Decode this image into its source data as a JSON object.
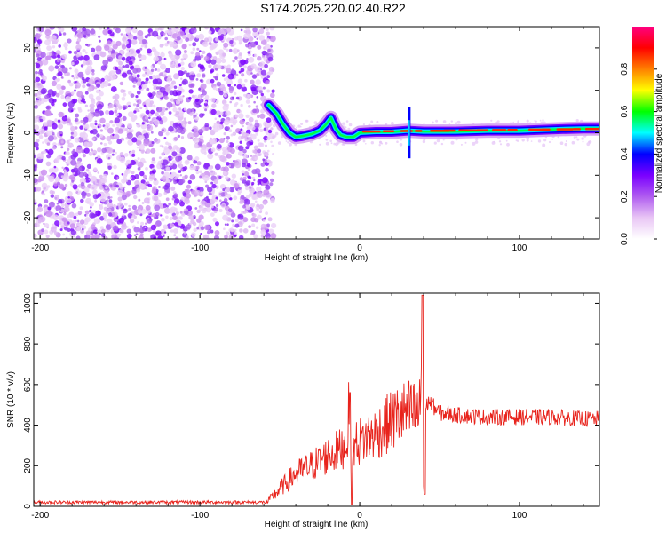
{
  "title": "S174.2025.220.02.40.R22",
  "chart_data": [
    {
      "type": "heatmap",
      "title": "S174.2025.220.02.40.R22",
      "xlabel": "Height of straight line (km)",
      "ylabel": "Frequency (Hz)",
      "xlim": [
        -204,
        150
      ],
      "ylim": [
        -25,
        25
      ],
      "xticks": [
        "-200",
        "-100",
        "0",
        "100"
      ],
      "yticks": [
        "20",
        "10",
        "0",
        "-10",
        "-20"
      ],
      "colorbar": {
        "label": "Normalized spectral amplitude",
        "range": [
          0.0,
          1.0
        ],
        "ticks": [
          "0.0",
          "0.2",
          "0.4",
          "0.6",
          "0.8"
        ],
        "colors": [
          "#ffffff",
          "#e9c6f5",
          "#b05cf0",
          "#7a00ff",
          "#0000ff",
          "#00ffff",
          "#00ff00",
          "#ffff00",
          "#ff8000",
          "#ff0000",
          "#ff0080"
        ]
      },
      "noise_region_x": [
        -204,
        -56
      ],
      "ridge": {
        "x": [
          -57,
          -52,
          -48,
          -44,
          -40,
          -36,
          -30,
          -25,
          -21,
          -18,
          -15,
          -12,
          -8,
          -4,
          0,
          10,
          20,
          30,
          40,
          60,
          80,
          100,
          120,
          140,
          150
        ],
        "y": [
          6.5,
          4.5,
          2.0,
          0.0,
          -1.0,
          -0.8,
          -0.3,
          0.5,
          2.0,
          3.5,
          1.0,
          -0.5,
          -1.0,
          -1.0,
          0.0,
          0.2,
          0.2,
          0.5,
          0.3,
          0.3,
          0.5,
          0.5,
          0.8,
          1.0,
          1.0
        ]
      }
    },
    {
      "type": "line",
      "xlabel": "Height of straight line (km)",
      "ylabel": "SNR (10 * v/v)",
      "xlim": [
        -204,
        150
      ],
      "ylim": [
        0,
        1050
      ],
      "xticks": [
        "-200",
        "-100",
        "0",
        "100"
      ],
      "yticks": [
        "0",
        "200",
        "400",
        "600",
        "800",
        "1000"
      ],
      "color": "#e8231c",
      "series": [
        {
          "x": [
            -204,
            -180,
            -150,
            -120,
            -90,
            -65,
            -58,
            -48,
            -40,
            -30,
            -20,
            -12,
            -8,
            -6,
            -5,
            -4,
            0,
            10,
            20,
            25,
            30,
            35,
            38,
            39,
            40,
            41,
            43,
            50,
            60,
            80,
            100,
            120,
            140,
            150
          ],
          "y": [
            20,
            20,
            20,
            20,
            20,
            20,
            20,
            100,
            160,
            200,
            250,
            280,
            320,
            560,
            20,
            300,
            320,
            360,
            420,
            450,
            460,
            460,
            470,
            1040,
            60,
            470,
            520,
            460,
            450,
            440,
            440,
            440,
            430,
            430
          ]
        }
      ]
    }
  ]
}
